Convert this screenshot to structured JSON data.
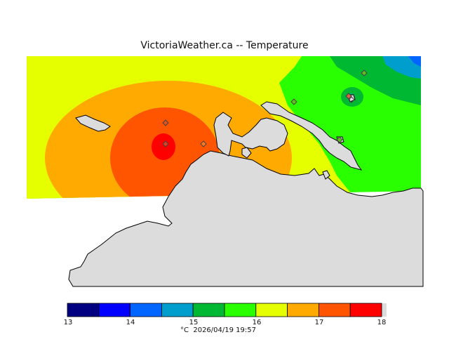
{
  "header": {
    "title": "VictoriaWeather.ca  --  Temperature"
  },
  "legend": {
    "ticks": [
      "13",
      "14",
      "15",
      "16",
      "17",
      "18"
    ],
    "unit": "°C",
    "timestamp": "2026/04/19 19:57",
    "colors": [
      "#000080",
      "#0000ff",
      "#0066ff",
      "#009ecc",
      "#00b832",
      "#2aff00",
      "#e6ff00",
      "#ffaa00",
      "#ff5500",
      "#ff0000"
    ]
  },
  "map": {
    "land_color": "#dcdcdc",
    "coastline_color": "#000000",
    "station_marker": "diamond"
  }
}
